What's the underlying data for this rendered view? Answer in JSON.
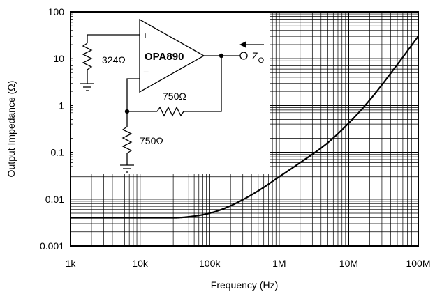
{
  "chart_data": {
    "type": "line",
    "xscale": "log",
    "yscale": "log",
    "xlim": [
      1000,
      100000000
    ],
    "ylim": [
      0.001,
      100
    ],
    "grid": true,
    "x_tick_values": [
      1000,
      10000,
      100000,
      1000000,
      10000000,
      100000000
    ],
    "x_tick_labels": [
      "1k",
      "10k",
      "100k",
      "1M",
      "10M",
      "100M"
    ],
    "y_tick_values": [
      0.001,
      0.01,
      0.1,
      1,
      10,
      100
    ],
    "y_tick_labels": [
      "0.001",
      "0.01",
      "0.1",
      "1",
      "10",
      "100"
    ],
    "xlabel": "Frequency (Hz)",
    "ylabel": "Output Impedance (Ω)",
    "series": [
      {
        "x": [
          1000,
          10000,
          30000,
          50000,
          100000,
          200000,
          500000,
          1000000,
          2000000,
          5000000,
          10000000,
          20000000,
          50000000,
          100000000
        ],
        "y": [
          0.004,
          0.004,
          0.004,
          0.0042,
          0.005,
          0.0072,
          0.015,
          0.03,
          0.06,
          0.16,
          0.42,
          1.3,
          7.5,
          30
        ]
      }
    ]
  },
  "schematic": {
    "opamp_label": "OPA890",
    "plus_sign": "+",
    "minus_sign": "−",
    "r_input_label": "324Ω",
    "r_feedback_label": "750Ω",
    "r_ground_label": "750Ω",
    "output_label": "Z",
    "output_subscript": "O"
  }
}
